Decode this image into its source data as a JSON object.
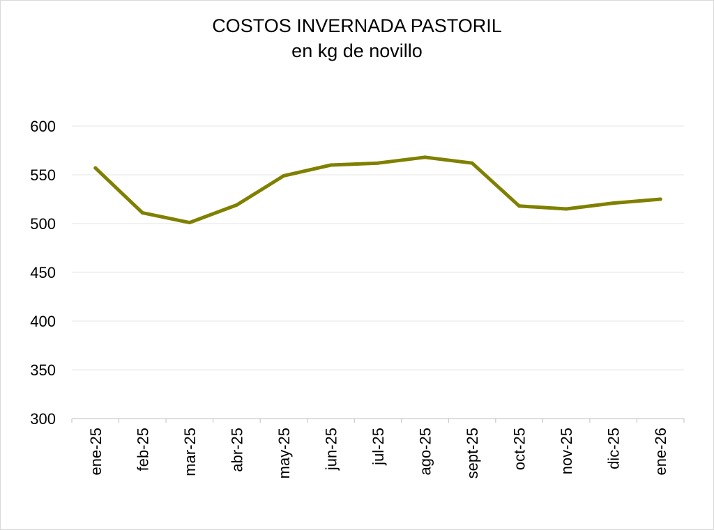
{
  "chart_data": {
    "type": "line",
    "title": "COSTOS INVERNADA PASTORIL",
    "subtitle": "en kg de novillo",
    "xlabel": "",
    "ylabel": "",
    "categories": [
      "ene-25",
      "feb-25",
      "mar-25",
      "abr-25",
      "may-25",
      "jun-25",
      "jul-25",
      "ago-25",
      "sept-25",
      "oct-25",
      "nov-25",
      "dic-25",
      "ene-26"
    ],
    "series": [
      {
        "values": [
          557,
          511,
          501,
          519,
          549,
          560,
          562,
          568,
          562,
          518,
          515,
          521,
          525
        ],
        "color": "#808000"
      }
    ],
    "ylim": [
      300,
      600
    ],
    "yticks": [
      "300",
      "350",
      "400",
      "450",
      "500",
      "550",
      "600"
    ],
    "grid": true,
    "legend": "none"
  }
}
